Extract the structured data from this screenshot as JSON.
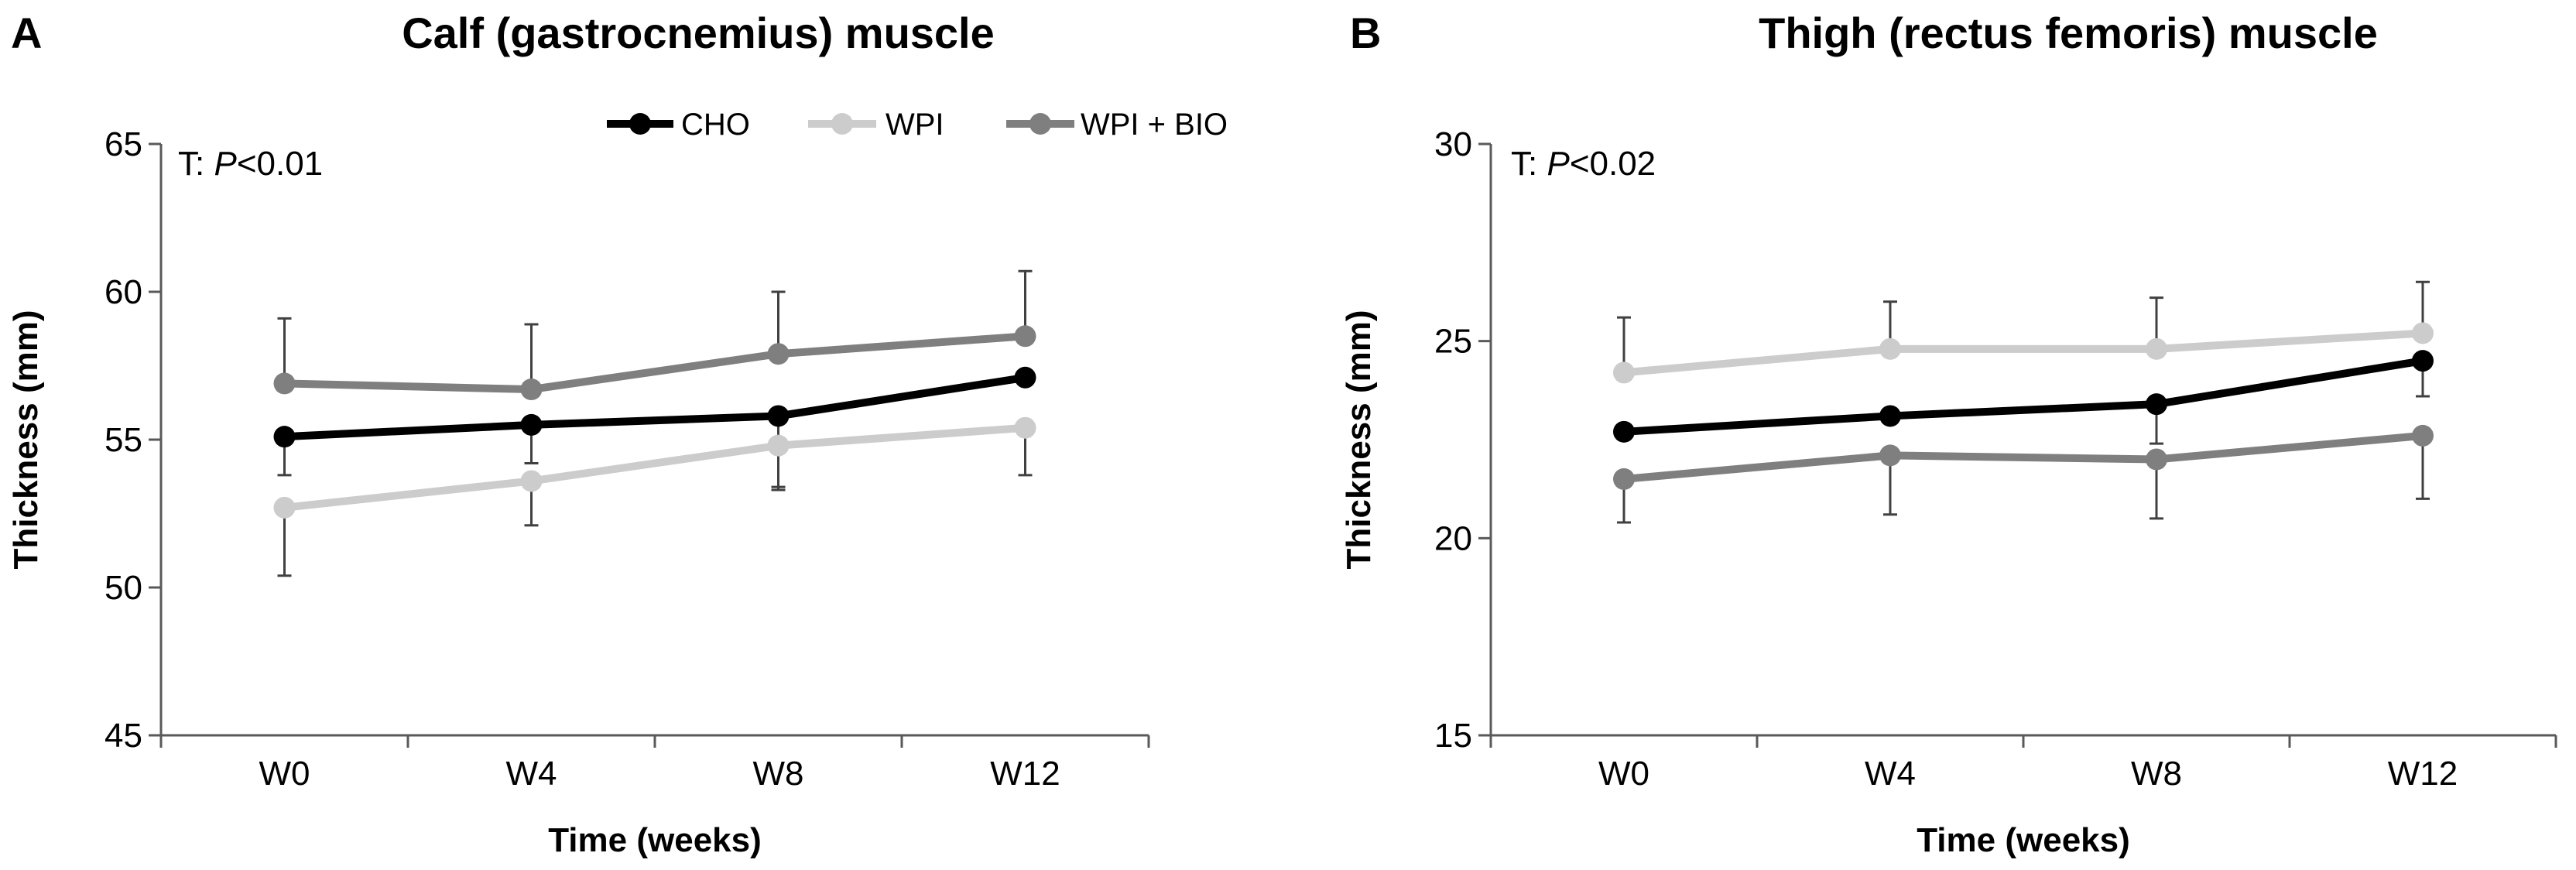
{
  "chart_data": [
    {
      "type": "line",
      "panel_label": "A",
      "title": "Calf (gastrocnemius) muscle",
      "xlabel": "Time (weeks)",
      "ylabel": "Thickness (mm)",
      "categories": [
        "W0",
        "W4",
        "W8",
        "W12"
      ],
      "ylim": [
        45,
        65
      ],
      "yticks": [
        45,
        50,
        55,
        60,
        65
      ],
      "annotation": {
        "prefix": "T: ",
        "italic": "P",
        "suffix": "<0.01"
      },
      "legend": {
        "position": "top-right",
        "entries": [
          "CHO",
          "WPI",
          "WPI + BIO"
        ]
      },
      "series": [
        {
          "name": "CHO",
          "color": "#000000",
          "values": [
            55.1,
            55.5,
            55.8,
            57.1
          ],
          "err_up": [
            0.0,
            0.0,
            0.0,
            0.0
          ],
          "err_down": [
            1.3,
            1.3,
            2.4,
            0.0
          ]
        },
        {
          "name": "WPI",
          "color": "#cccccc",
          "values": [
            52.7,
            53.6,
            54.8,
            55.4
          ],
          "err_up": [
            0.0,
            0.0,
            0.0,
            0.0
          ],
          "err_down": [
            2.3,
            1.5,
            1.5,
            1.6
          ]
        },
        {
          "name": "WPI + BIO",
          "color": "#7f7f7f",
          "values": [
            56.9,
            56.7,
            57.9,
            58.5
          ],
          "err_up": [
            2.2,
            2.2,
            2.1,
            2.2
          ],
          "err_down": [
            0.0,
            0.0,
            0.0,
            0.0
          ]
        }
      ]
    },
    {
      "type": "line",
      "panel_label": "B",
      "title": "Thigh (rectus femoris) muscle",
      "xlabel": "Time (weeks)",
      "ylabel": "Thickness (mm)",
      "categories": [
        "W0",
        "W4",
        "W8",
        "W12"
      ],
      "ylim": [
        15,
        30
      ],
      "yticks": [
        15,
        20,
        25,
        30
      ],
      "annotation": {
        "prefix": "T: ",
        "italic": "P",
        "suffix": "<0.02"
      },
      "series": [
        {
          "name": "CHO",
          "color": "#000000",
          "values": [
            22.7,
            23.1,
            23.4,
            24.5
          ],
          "err_up": [
            0.0,
            0.0,
            0.0,
            0.0
          ],
          "err_down": [
            0.0,
            0.0,
            1.0,
            0.9
          ]
        },
        {
          "name": "WPI",
          "color": "#cccccc",
          "values": [
            24.2,
            24.8,
            24.8,
            25.2
          ],
          "err_up": [
            1.4,
            1.2,
            1.3,
            1.3
          ],
          "err_down": [
            0.0,
            0.0,
            0.0,
            0.0
          ]
        },
        {
          "name": "WPI + BIO",
          "color": "#7f7f7f",
          "values": [
            21.5,
            22.1,
            22.0,
            22.6
          ],
          "err_up": [
            0.0,
            0.0,
            0.0,
            0.0
          ],
          "err_down": [
            1.1,
            1.5,
            1.5,
            1.6
          ]
        }
      ]
    }
  ]
}
